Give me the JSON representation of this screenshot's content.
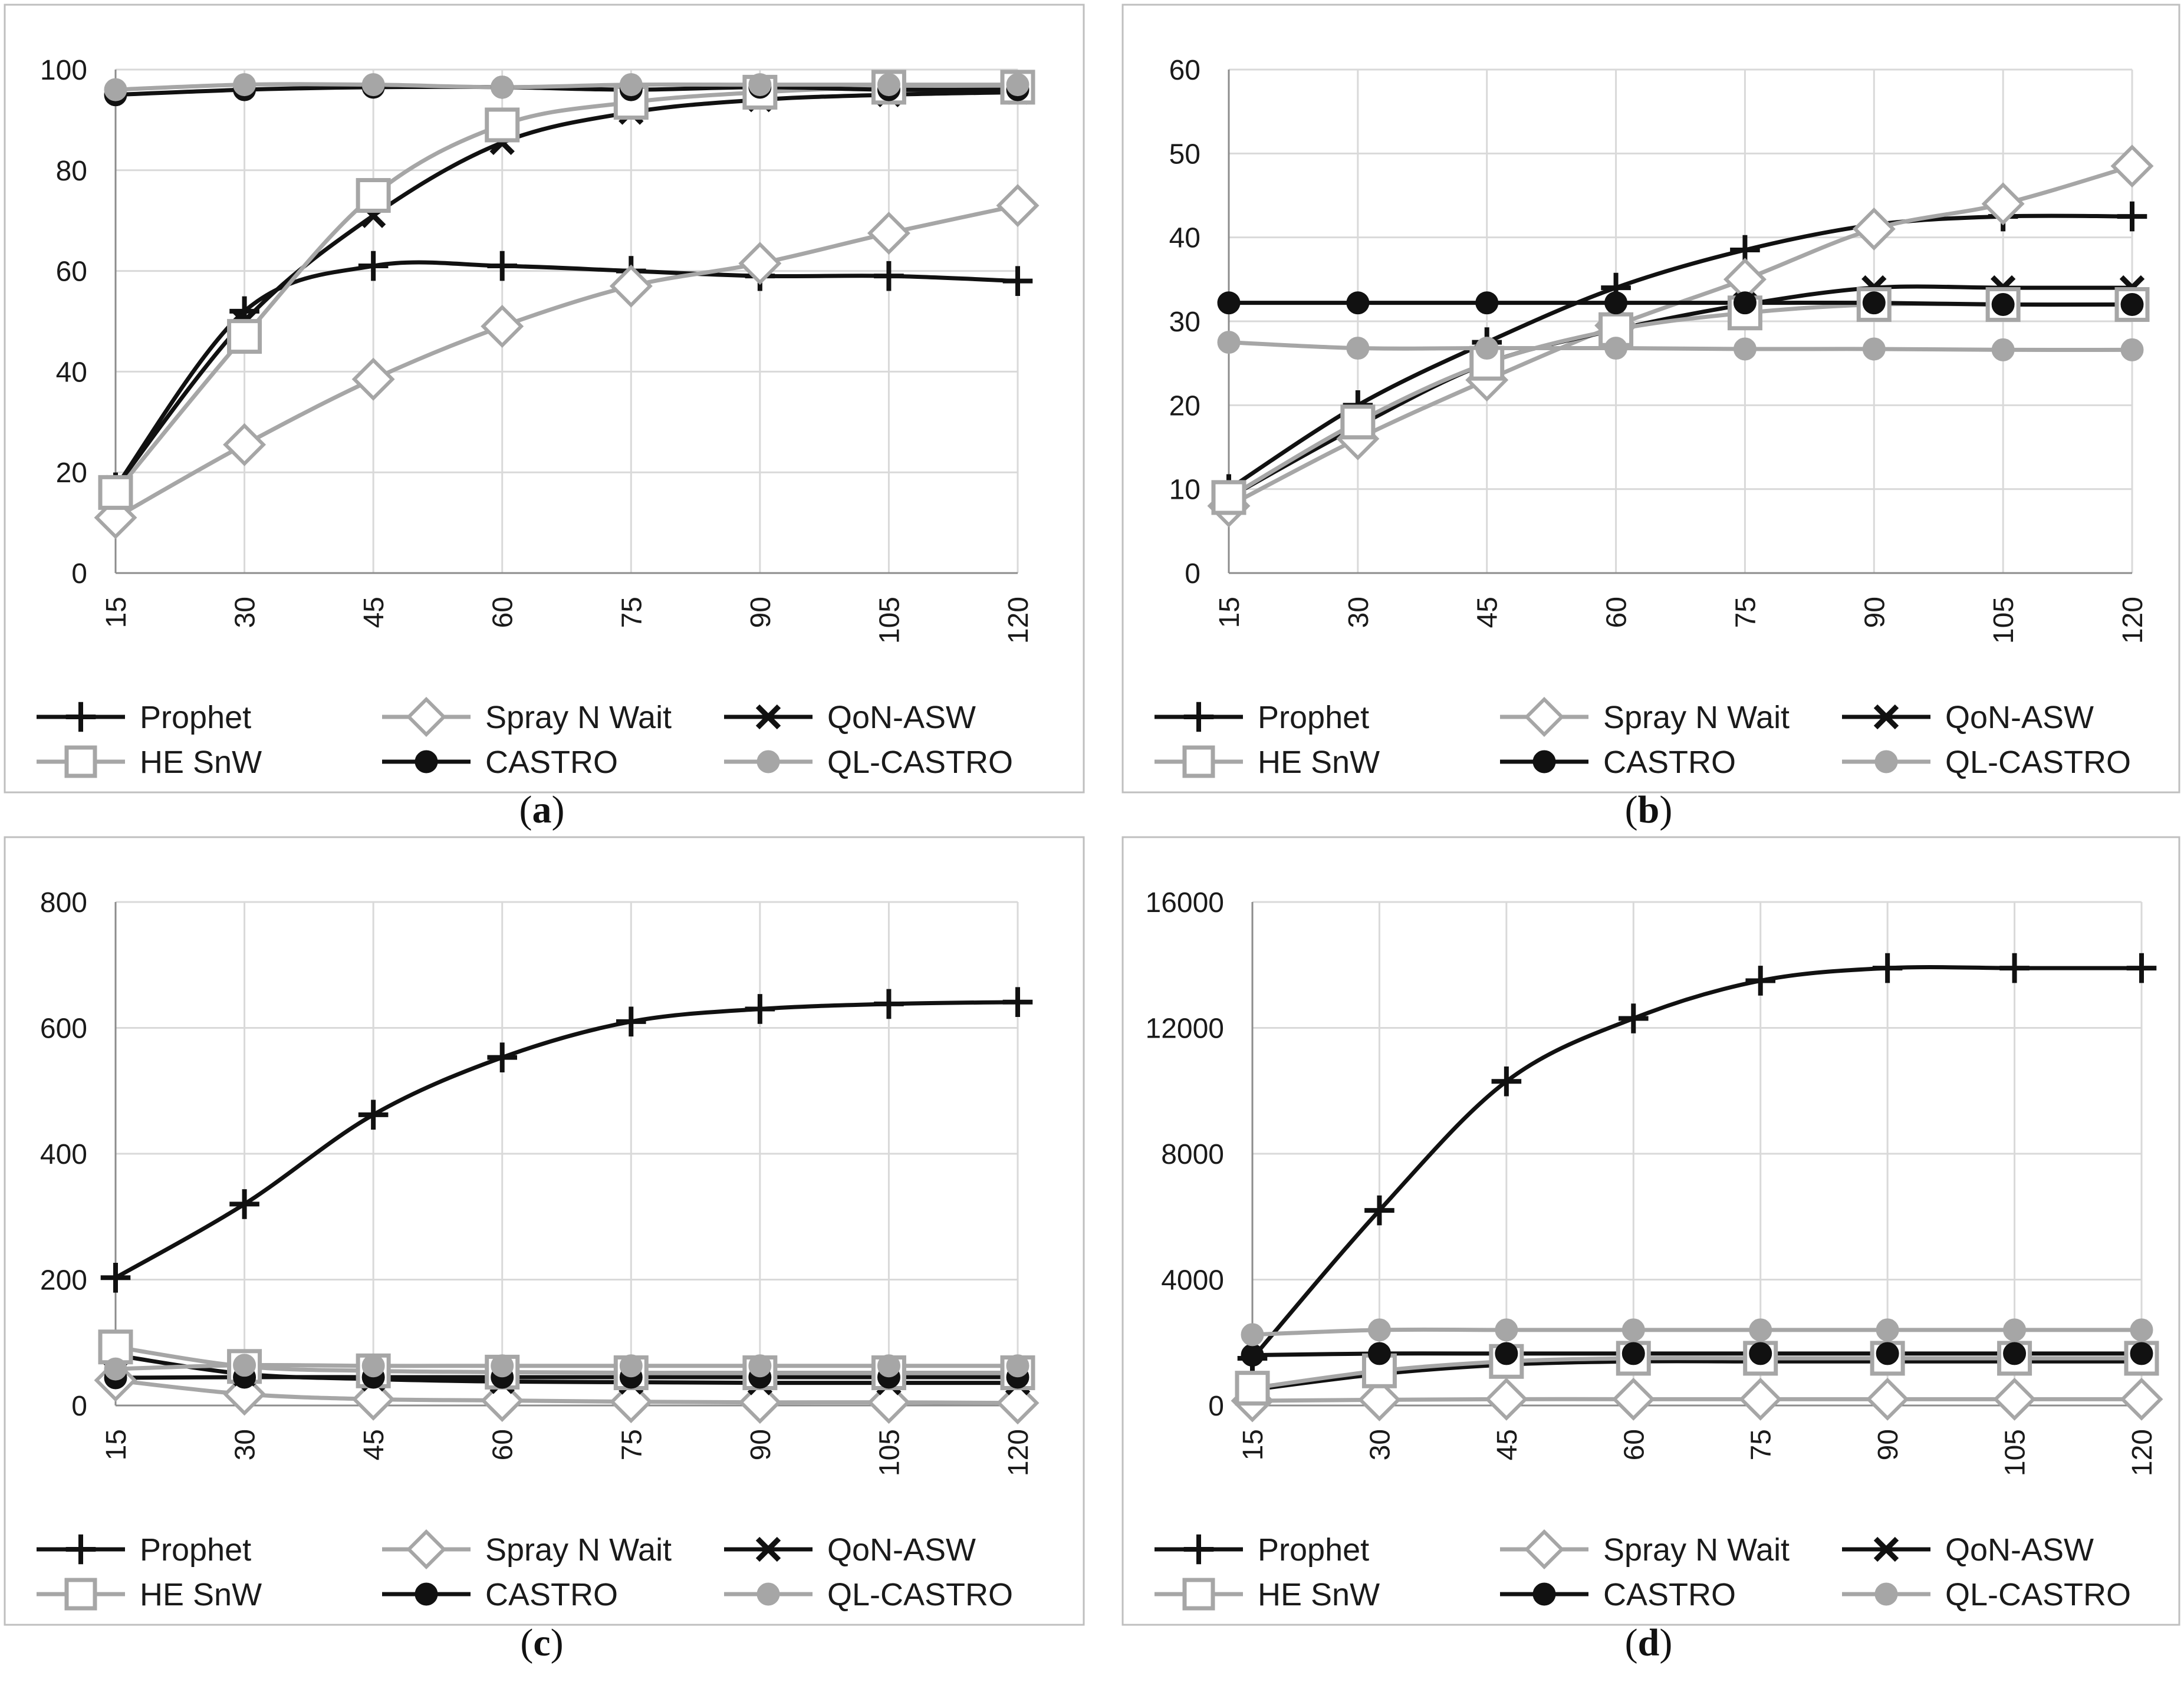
{
  "colors": {
    "black": "#111111",
    "grey": "#a6a6a6",
    "grid": "#d9d9d9",
    "frame": "#bfbfbf"
  },
  "chart_data": [
    {
      "type": "line",
      "caption": {
        "open": "(",
        "letter": "a",
        "close": ")"
      },
      "x": [
        15,
        30,
        45,
        60,
        75,
        90,
        105,
        120
      ],
      "x_tick_labels": [
        "15",
        "30",
        "45",
        "60",
        "75",
        "90",
        "105",
        "120"
      ],
      "ylim": [
        0,
        100
      ],
      "y_ticks": [
        0,
        20,
        40,
        60,
        80,
        100
      ],
      "y_tick_labels": [
        "0",
        "20",
        "40",
        "60",
        "80",
        "100"
      ],
      "grid": true,
      "legend_position": "bottom",
      "series": [
        {
          "name": "Prophet",
          "color": "black",
          "marker": "plus",
          "values": [
            17,
            52,
            61,
            61,
            60,
            59,
            59,
            58
          ]
        },
        {
          "name": "Spray N Wait",
          "color": "grey",
          "marker": "diamond",
          "values": [
            11,
            25.5,
            38.5,
            49,
            57,
            61.5,
            67.5,
            73
          ]
        },
        {
          "name": "QoN-ASW",
          "color": "black",
          "marker": "x",
          "values": [
            17,
            50,
            71,
            85.5,
            91.5,
            94,
            95,
            95.5
          ]
        },
        {
          "name": "HE SnW",
          "color": "grey",
          "marker": "square",
          "values": [
            16,
            47,
            75,
            89,
            93.5,
            95.5,
            96.5,
            96.5
          ]
        },
        {
          "name": "CASTRO",
          "color": "black",
          "marker": "circle",
          "values": [
            95,
            96,
            96.5,
            96.5,
            96,
            96.5,
            96,
            96
          ]
        },
        {
          "name": "QL-CASTRO",
          "color": "grey",
          "marker": "circle",
          "values": [
            96,
            97,
            97,
            96.5,
            97,
            97,
            97,
            97
          ]
        }
      ]
    },
    {
      "type": "line",
      "caption": {
        "open": "(",
        "letter": "b",
        "close": ")"
      },
      "x": [
        15,
        30,
        45,
        60,
        75,
        90,
        105,
        120
      ],
      "x_tick_labels": [
        "15",
        "30",
        "45",
        "60",
        "75",
        "90",
        "105",
        "120"
      ],
      "ylim": [
        0,
        60
      ],
      "y_ticks": [
        0,
        10,
        20,
        30,
        40,
        50,
        60
      ],
      "y_tick_labels": [
        "0",
        "10",
        "20",
        "30",
        "40",
        "50",
        "60"
      ],
      "grid": true,
      "legend_position": "bottom",
      "series": [
        {
          "name": "Prophet",
          "color": "black",
          "marker": "plus",
          "values": [
            10,
            20,
            27.5,
            34,
            38.5,
            41.5,
            42.5,
            42.5
          ]
        },
        {
          "name": "Spray N Wait",
          "color": "grey",
          "marker": "diamond",
          "values": [
            8,
            16,
            23,
            29.5,
            35,
            41,
            44,
            48.5
          ]
        },
        {
          "name": "QoN-ASW",
          "color": "black",
          "marker": "x",
          "values": [
            9,
            17.5,
            25,
            29,
            32,
            34,
            34,
            34
          ]
        },
        {
          "name": "HE SnW",
          "color": "grey",
          "marker": "square",
          "values": [
            9,
            18,
            25,
            29,
            31,
            32,
            32,
            32
          ]
        },
        {
          "name": "CASTRO",
          "color": "black",
          "marker": "circle",
          "values": [
            32.2,
            32.2,
            32.2,
            32.2,
            32.2,
            32.2,
            32,
            32
          ]
        },
        {
          "name": "QL-CASTRO",
          "color": "grey",
          "marker": "circle",
          "values": [
            27.5,
            26.8,
            26.8,
            26.8,
            26.7,
            26.7,
            26.6,
            26.6
          ]
        }
      ]
    },
    {
      "type": "line",
      "caption": {
        "open": "(",
        "letter": "c",
        "close": ")"
      },
      "x": [
        15,
        30,
        45,
        60,
        75,
        90,
        105,
        120
      ],
      "x_tick_labels": [
        "15",
        "30",
        "45",
        "60",
        "75",
        "90",
        "105",
        "120"
      ],
      "ylim": [
        0,
        800
      ],
      "y_ticks": [
        0,
        200,
        400,
        600,
        800
      ],
      "y_tick_labels": [
        "0",
        "200",
        "400",
        "600",
        "800"
      ],
      "grid": true,
      "legend_position": "bottom",
      "series": [
        {
          "name": "Prophet",
          "color": "black",
          "marker": "plus",
          "values": [
            203,
            320,
            462,
            553,
            610,
            630,
            638,
            641
          ]
        },
        {
          "name": "Spray N Wait",
          "color": "grey",
          "marker": "diamond",
          "values": [
            40,
            18,
            10,
            8,
            6,
            5,
            5,
            4
          ]
        },
        {
          "name": "QoN-ASW",
          "color": "black",
          "marker": "x",
          "values": [
            80,
            50,
            42,
            38,
            37,
            36,
            36,
            36
          ]
        },
        {
          "name": "HE SnW",
          "color": "grey",
          "marker": "square",
          "values": [
            93,
            62,
            55,
            53,
            52,
            52,
            52,
            52
          ]
        },
        {
          "name": "CASTRO",
          "color": "black",
          "marker": "circle",
          "values": [
            44,
            45,
            45,
            45,
            45,
            45,
            45,
            45
          ]
        },
        {
          "name": "QL-CASTRO",
          "color": "grey",
          "marker": "circle",
          "values": [
            58,
            64,
            63,
            63,
            63,
            63,
            63,
            63
          ]
        }
      ]
    },
    {
      "type": "line",
      "caption": {
        "open": "(",
        "letter": "d",
        "close": ")"
      },
      "x": [
        15,
        30,
        45,
        60,
        75,
        90,
        105,
        120
      ],
      "x_tick_labels": [
        "15",
        "30",
        "45",
        "60",
        "75",
        "90",
        "105",
        "120"
      ],
      "ylim": [
        0,
        16000
      ],
      "y_ticks": [
        0,
        4000,
        8000,
        12000,
        16000
      ],
      "y_tick_labels": [
        "0",
        "4000",
        "8000",
        "12000",
        "16000"
      ],
      "grid": true,
      "legend_position": "bottom",
      "series": [
        {
          "name": "Prophet",
          "color": "black",
          "marker": "plus",
          "values": [
            1500,
            6200,
            10300,
            12300,
            13500,
            13900,
            13900,
            13900
          ]
        },
        {
          "name": "Spray N Wait",
          "color": "grey",
          "marker": "diamond",
          "values": [
            150,
            180,
            200,
            200,
            200,
            200,
            200,
            200
          ]
        },
        {
          "name": "QoN-ASW",
          "color": "black",
          "marker": "x",
          "values": [
            500,
            1000,
            1300,
            1400,
            1400,
            1400,
            1400,
            1400
          ]
        },
        {
          "name": "HE SnW",
          "color": "grey",
          "marker": "square",
          "values": [
            550,
            1100,
            1400,
            1500,
            1500,
            1500,
            1500,
            1500
          ]
        },
        {
          "name": "CASTRO",
          "color": "black",
          "marker": "circle",
          "values": [
            1600,
            1650,
            1650,
            1650,
            1650,
            1650,
            1650,
            1650
          ]
        },
        {
          "name": "QL-CASTRO",
          "color": "grey",
          "marker": "circle",
          "values": [
            2250,
            2400,
            2400,
            2400,
            2400,
            2400,
            2400,
            2400
          ]
        }
      ]
    }
  ]
}
